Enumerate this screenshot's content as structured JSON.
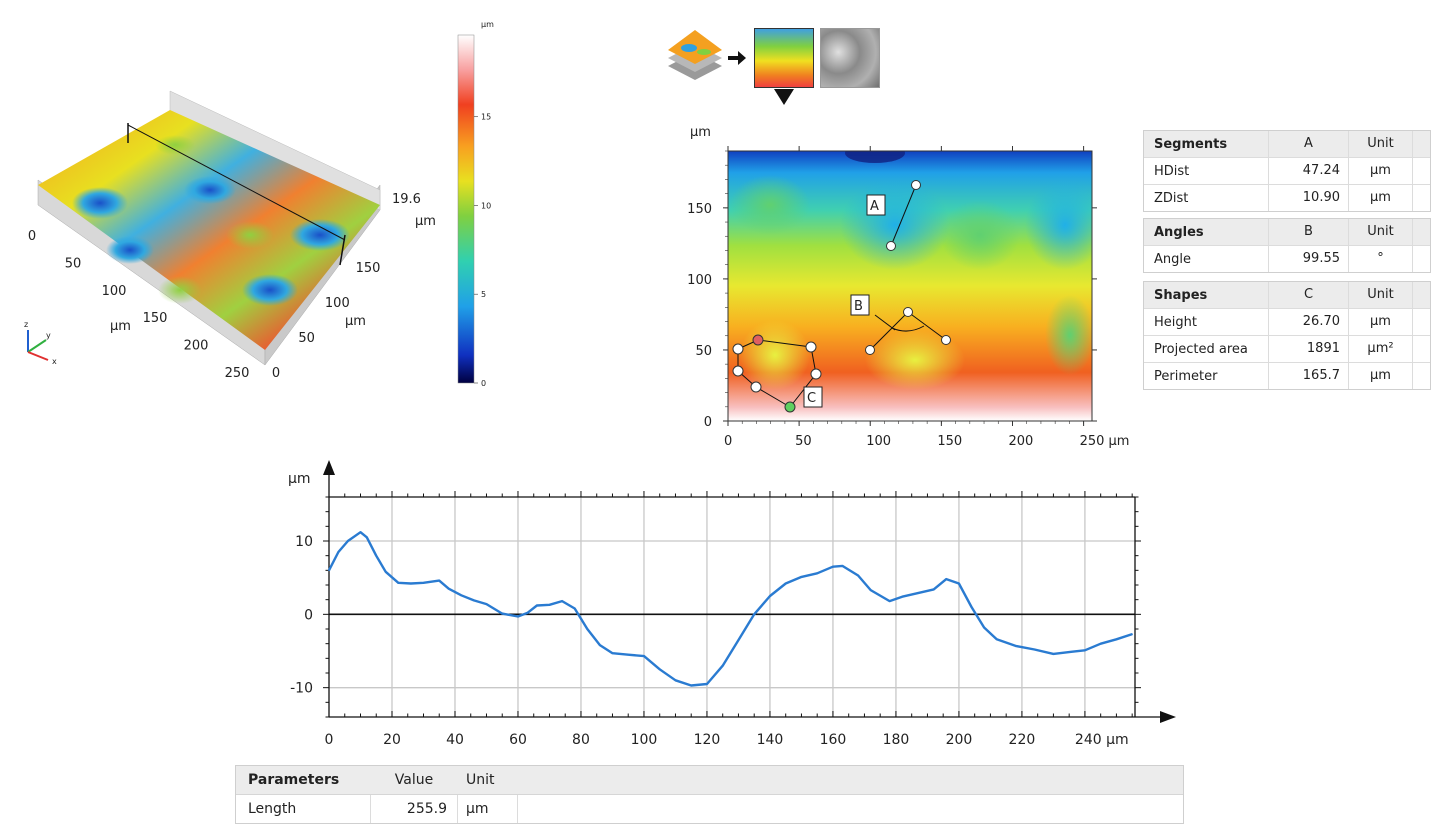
{
  "view3d": {
    "z_max_label": "19.6",
    "z_unit": "µm",
    "x_ticks": [
      "0",
      "50",
      "100",
      "150",
      "200",
      "250"
    ],
    "x_unit": "µm",
    "y_ticks": [
      "0",
      "50",
      "100",
      "150"
    ],
    "y_unit": "µm",
    "axes_labels": {
      "z": "z",
      "y": "y",
      "x": "x"
    }
  },
  "colorbar": {
    "unit": "µm",
    "ticks": [
      "0",
      "5",
      "10",
      "15"
    ],
    "range": [
      0,
      19.6
    ]
  },
  "map2d": {
    "unit_top": "µm",
    "x_ticks": [
      "0",
      "50",
      "100",
      "150",
      "200",
      "250 µm"
    ],
    "y_ticks": [
      "0",
      "50",
      "100",
      "150"
    ],
    "labels": {
      "a": "A",
      "b": "B",
      "c": "C"
    }
  },
  "segments": {
    "title": "Segments",
    "col": "A",
    "unit_col": "Unit",
    "rows": [
      {
        "name": "HDist",
        "value": "47.24",
        "unit": "µm"
      },
      {
        "name": "ZDist",
        "value": "10.90",
        "unit": "µm"
      }
    ]
  },
  "angles": {
    "title": "Angles",
    "col": "B",
    "unit_col": "Unit",
    "rows": [
      {
        "name": "Angle",
        "value": "99.55",
        "unit": "°"
      }
    ]
  },
  "shapes": {
    "title": "Shapes",
    "col": "C",
    "unit_col": "Unit",
    "rows": [
      {
        "name": "Height",
        "value": "26.70",
        "unit": "µm"
      },
      {
        "name": "Projected area",
        "value": "1891",
        "unit": "µm²"
      },
      {
        "name": "Perimeter",
        "value": "165.7",
        "unit": "µm"
      }
    ]
  },
  "parameters": {
    "title": "Parameters",
    "value_col": "Value",
    "unit_col": "Unit",
    "rows": [
      {
        "name": "Length",
        "value": "255.9",
        "unit": "µm"
      }
    ]
  },
  "colors": {
    "profile_line": "#2a7bd1",
    "grid": "#c8c8c8"
  },
  "chart_data": {
    "type": "line",
    "title": "",
    "xlabel": "",
    "ylabel": "µm",
    "x_unit": "µm",
    "xlim": [
      0,
      255.9
    ],
    "ylim": [
      -14,
      16
    ],
    "x_ticks": [
      0,
      20,
      40,
      60,
      80,
      100,
      120,
      140,
      160,
      180,
      200,
      220,
      240
    ],
    "x_tick_labels": [
      "0",
      "20",
      "40",
      "60",
      "80",
      "100",
      "120",
      "140",
      "160",
      "180",
      "200",
      "220",
      "240 µm"
    ],
    "y_ticks": [
      -10,
      0,
      10
    ],
    "y_tick_labels": [
      "-10",
      "0",
      "10"
    ],
    "grid": true,
    "series": [
      {
        "x": [
          0,
          3,
          6,
          10,
          12,
          15,
          18,
          22,
          26,
          30,
          35,
          38,
          42,
          46,
          50,
          55,
          60,
          63,
          66,
          70,
          74,
          78,
          82,
          86,
          90,
          95,
          100,
          105,
          110,
          115,
          120,
          125,
          130,
          135,
          140,
          145,
          150,
          155,
          160,
          163,
          168,
          172,
          178,
          182,
          187,
          192,
          196,
          200,
          204,
          208,
          212,
          218,
          224,
          230,
          236,
          240,
          245,
          250,
          255
        ],
        "y": [
          6,
          8.5,
          10,
          11.2,
          10.5,
          8,
          5.8,
          4.3,
          4.2,
          4.3,
          4.6,
          3.5,
          2.6,
          1.9,
          1.4,
          0.1,
          -0.3,
          0.2,
          1.2,
          1.3,
          1.8,
          0.8,
          -2,
          -4.2,
          -5.3,
          -5.5,
          -5.7,
          -7.5,
          -9,
          -9.7,
          -9.5,
          -7,
          -3.5,
          0,
          2.5,
          4.2,
          5.1,
          5.6,
          6.5,
          6.6,
          5.3,
          3.3,
          1.8,
          2.4,
          2.9,
          3.4,
          4.8,
          4.2,
          1,
          -1.8,
          -3.4,
          -4.3,
          -4.8,
          -5.4,
          -5.1,
          -4.9,
          -4.0,
          -3.4,
          -2.7
        ]
      }
    ]
  }
}
